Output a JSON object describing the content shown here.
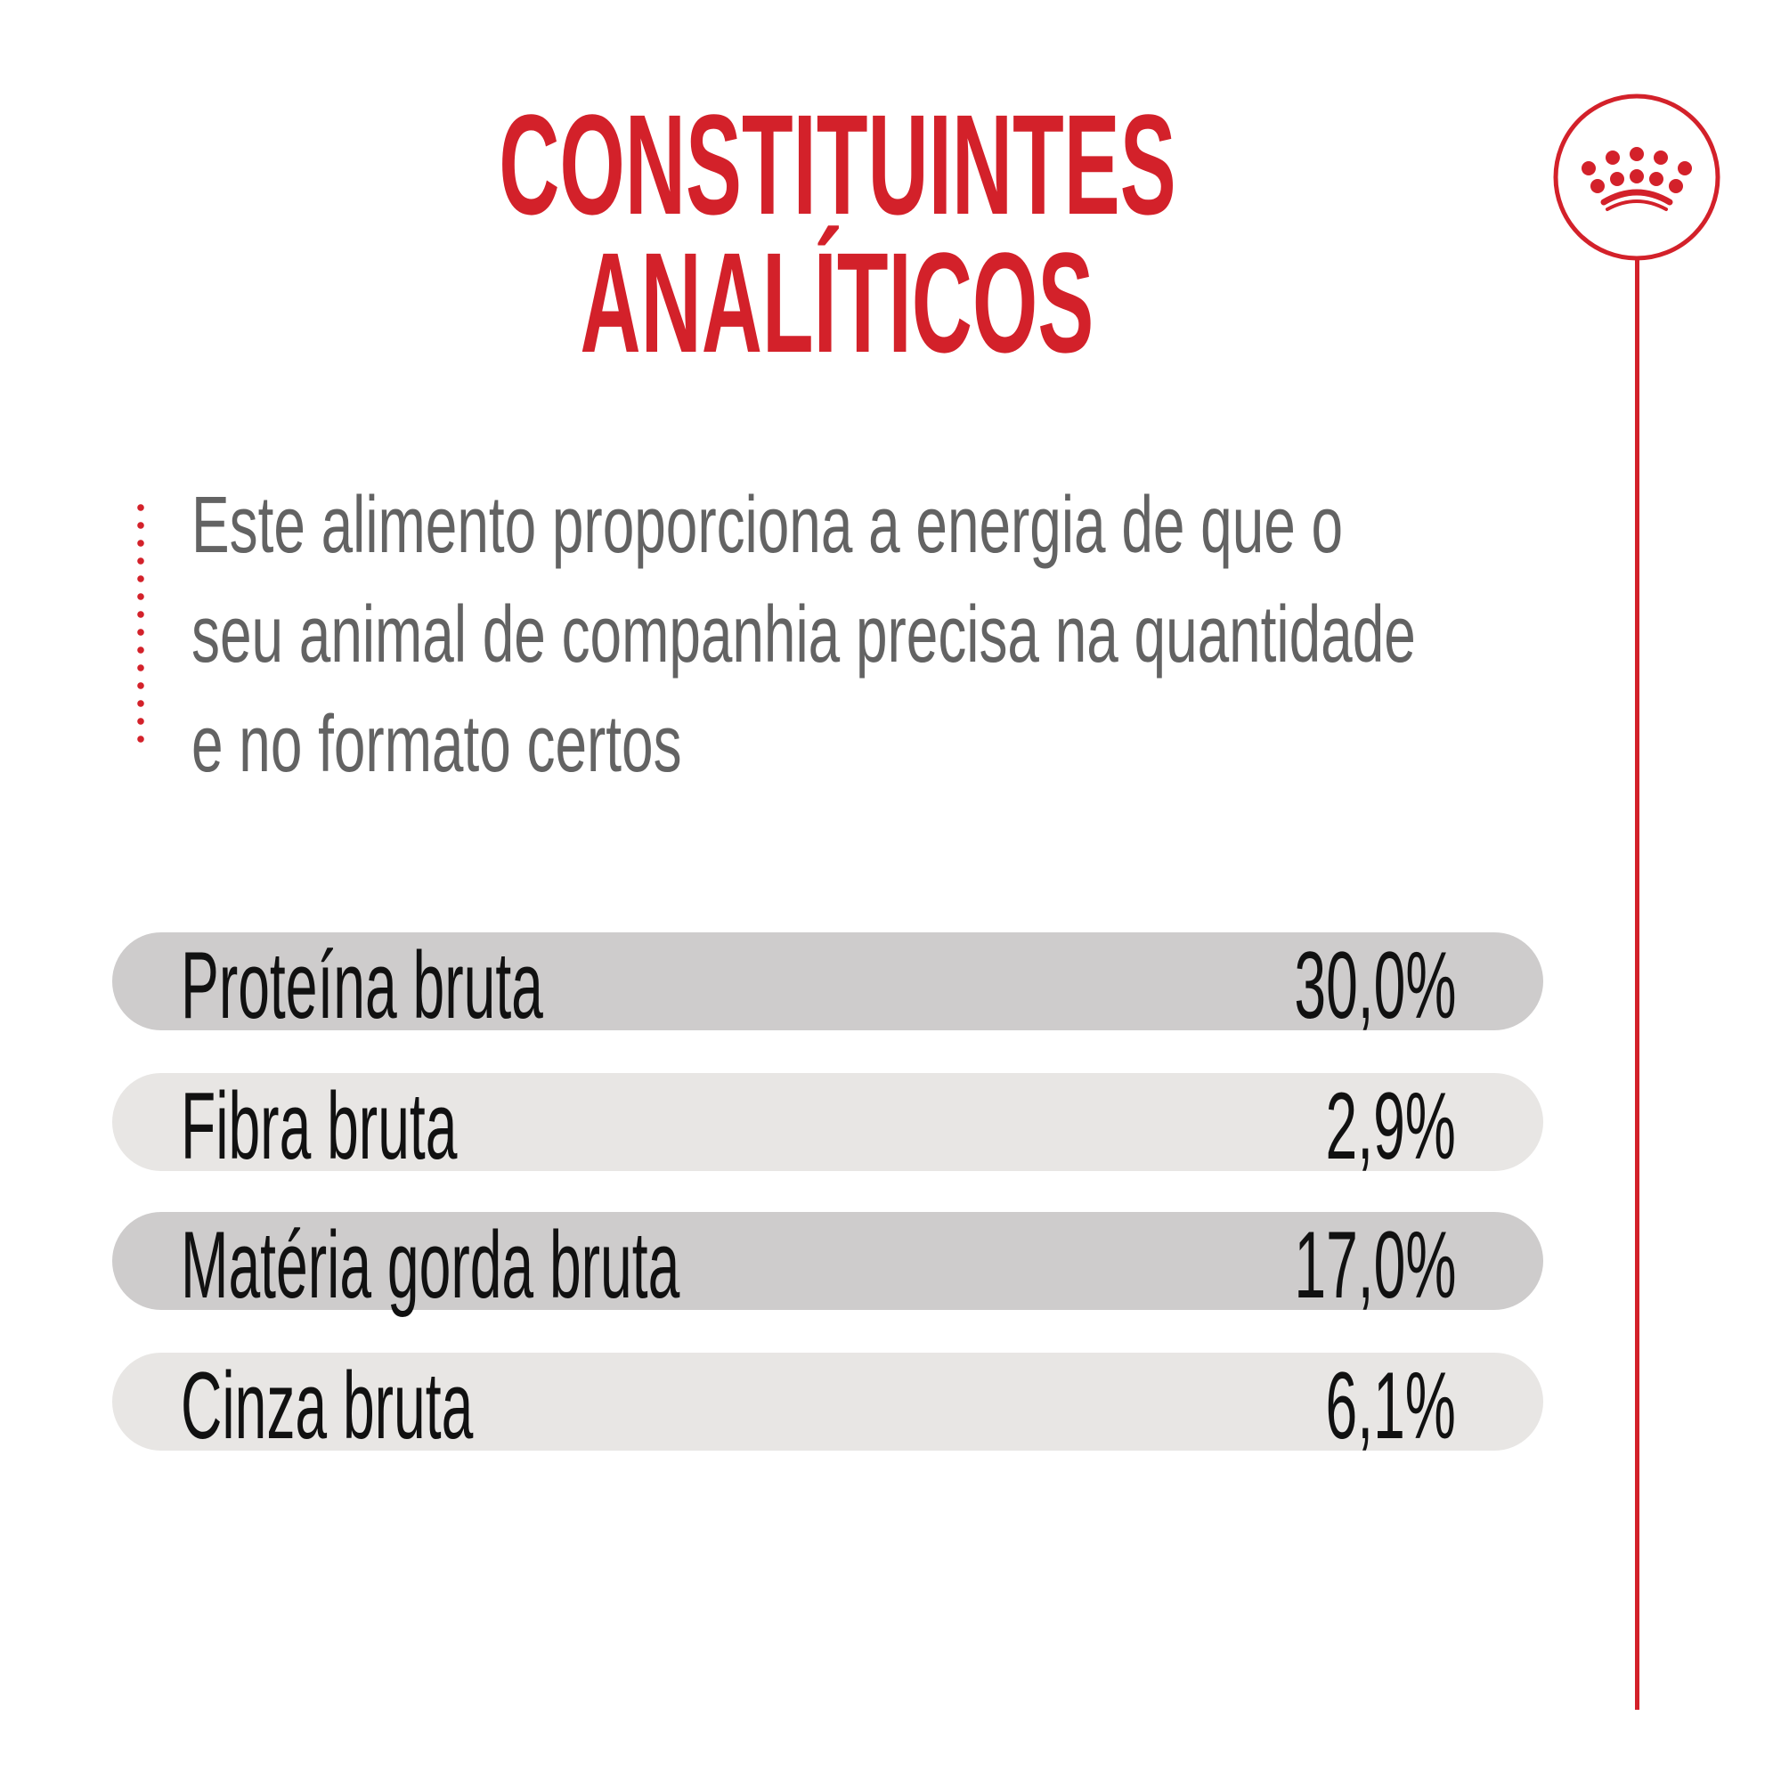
{
  "title": {
    "line1": "CONSTITUINTES",
    "line2": "ANALÍTICOS"
  },
  "description": {
    "lines": [
      "Este alimento proporciona a energia de que o",
      "seu animal de companhia precisa na quantidade",
      "e no formato certos"
    ]
  },
  "constituents": [
    {
      "label": "Proteína bruta",
      "value": "30,0%"
    },
    {
      "label": "Fibra bruta",
      "value": "2,9%"
    },
    {
      "label": "Matéria gorda bruta",
      "value": "17,0%"
    },
    {
      "label": "Cinza bruta",
      "value": "6,1%"
    }
  ],
  "logo": {
    "icon": "royal-canin-crown-icon"
  },
  "colors": {
    "accent": "#d3212a",
    "text": "#636363",
    "row_dark": "#cecccc",
    "row_light": "#e8e6e4"
  }
}
